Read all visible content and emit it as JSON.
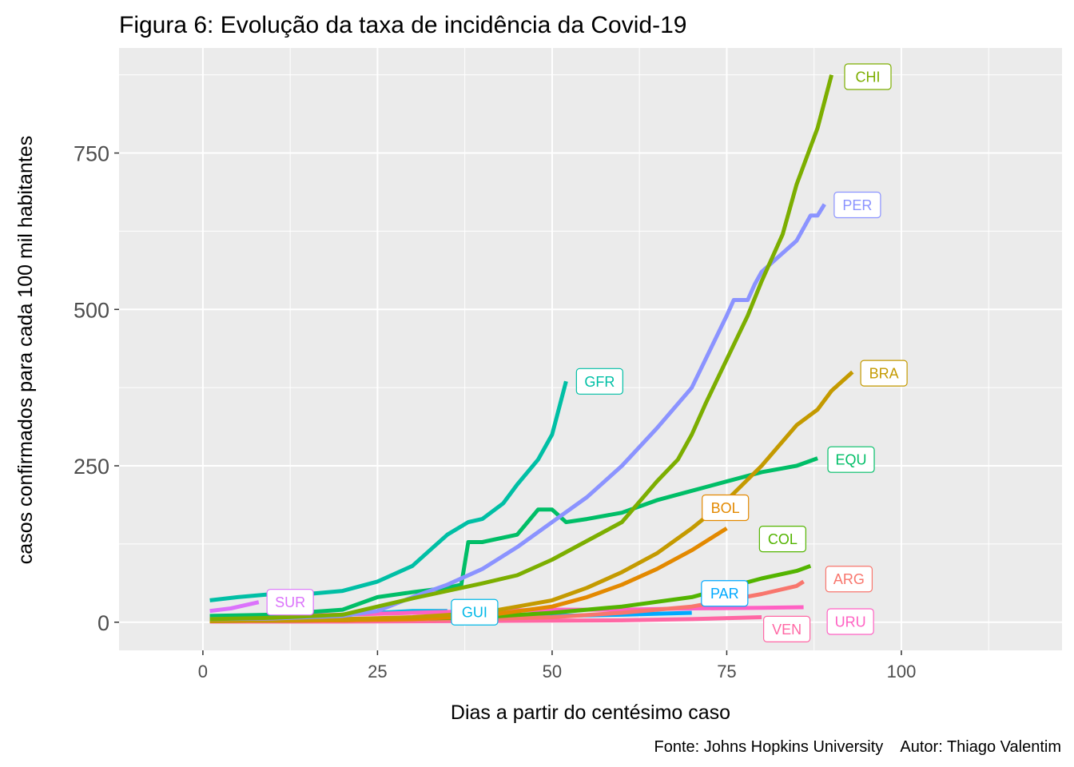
{
  "chart_data": {
    "type": "line",
    "title": "Figura 6: Evolução da taxa de incidência da Covid-19",
    "xlabel": "Dias a partir do centésimo caso",
    "ylabel": "casos confirmados para cada 100 mil habitantes",
    "caption": "Fonte: Johns Hopkins University    Autor: Thiago Valentim",
    "xlim": [
      -12,
      123
    ],
    "ylim": [
      -45,
      918
    ],
    "x_ticks": [
      0,
      25,
      50,
      75,
      100
    ],
    "x_tick_labels": [
      "0",
      "25",
      "50",
      "75",
      "100"
    ],
    "y_ticks": [
      0,
      250,
      500,
      750
    ],
    "y_tick_labels": [
      "0",
      "250",
      "500",
      "750"
    ],
    "grid": true,
    "legend": "none",
    "series": [
      {
        "name": "CHI",
        "color": "#7CAE00",
        "x": [
          1,
          10,
          20,
          25,
          30,
          35,
          40,
          45,
          50,
          55,
          60,
          65,
          68,
          70,
          72,
          75,
          78,
          80,
          83,
          85,
          88,
          90
        ],
        "y": [
          5,
          7,
          12,
          25,
          38,
          50,
          62,
          75,
          100,
          130,
          160,
          225,
          260,
          300,
          350,
          420,
          490,
          545,
          620,
          700,
          790,
          875
        ]
      },
      {
        "name": "PER",
        "color": "#8B93FF",
        "x": [
          1,
          10,
          20,
          25,
          30,
          35,
          40,
          45,
          50,
          55,
          60,
          65,
          70,
          75,
          76,
          77,
          78,
          79,
          80,
          82,
          85,
          87,
          88,
          89
        ],
        "y": [
          5,
          6,
          10,
          18,
          40,
          60,
          85,
          120,
          160,
          200,
          250,
          310,
          375,
          490,
          515,
          515,
          515,
          540,
          560,
          580,
          610,
          650,
          650,
          668
        ]
      },
      {
        "name": "BRA",
        "color": "#C49A00",
        "x": [
          1,
          10,
          20,
          30,
          40,
          50,
          55,
          60,
          65,
          70,
          75,
          80,
          85,
          88,
          90,
          93
        ],
        "y": [
          2,
          3,
          5,
          8,
          15,
          35,
          55,
          80,
          110,
          150,
          195,
          250,
          315,
          340,
          370,
          400
        ]
      },
      {
        "name": "EQU",
        "color": "#00BE67",
        "x": [
          1,
          10,
          20,
          25,
          30,
          35,
          37,
          38,
          40,
          45,
          48,
          50,
          52,
          55,
          60,
          65,
          70,
          75,
          80,
          85,
          88
        ],
        "y": [
          10,
          12,
          20,
          40,
          48,
          55,
          60,
          128,
          128,
          140,
          180,
          180,
          160,
          165,
          175,
          195,
          210,
          225,
          240,
          250,
          262
        ]
      },
      {
        "name": "GFR",
        "color": "#00BFA5",
        "x": [
          1,
          5,
          10,
          15,
          20,
          25,
          30,
          33,
          35,
          38,
          40,
          43,
          45,
          48,
          50,
          52
        ],
        "y": [
          35,
          40,
          45,
          45,
          50,
          65,
          90,
          120,
          140,
          160,
          165,
          190,
          220,
          260,
          300,
          385
        ]
      },
      {
        "name": "BOL",
        "color": "#E38900",
        "x": [
          1,
          20,
          30,
          40,
          50,
          55,
          60,
          65,
          70,
          75
        ],
        "y": [
          2,
          3,
          5,
          10,
          25,
          40,
          60,
          85,
          115,
          150
        ]
      },
      {
        "name": "COL",
        "color": "#53B400",
        "x": [
          1,
          20,
          40,
          50,
          60,
          70,
          75,
          80,
          85,
          87
        ],
        "y": [
          2,
          3,
          8,
          15,
          25,
          40,
          55,
          70,
          82,
          90
        ]
      },
      {
        "name": "ARG",
        "color": "#F8766D",
        "x": [
          1,
          20,
          40,
          50,
          60,
          70,
          75,
          80,
          85,
          86
        ],
        "y": [
          2,
          3,
          5,
          8,
          15,
          25,
          35,
          45,
          58,
          65
        ]
      },
      {
        "name": "PAR",
        "color": "#00A9FF",
        "x": [
          1,
          20,
          40,
          50,
          60,
          70
        ],
        "y": [
          3,
          5,
          8,
          10,
          12,
          15
        ]
      },
      {
        "name": "URU",
        "color": "#FF61C3",
        "x": [
          1,
          10,
          20,
          30,
          40,
          50,
          60,
          70,
          80,
          86
        ],
        "y": [
          8,
          10,
          12,
          15,
          18,
          20,
          20,
          22,
          23,
          24
        ]
      },
      {
        "name": "VEN",
        "color": "#FF67A4",
        "x": [
          1,
          20,
          40,
          60,
          70,
          80
        ],
        "y": [
          1,
          1,
          2,
          3,
          5,
          8
        ]
      },
      {
        "name": "GUI",
        "color": "#00B8E7",
        "x": [
          1,
          10,
          20,
          30,
          35
        ],
        "y": [
          5,
          8,
          12,
          18,
          18
        ]
      },
      {
        "name": "SUR",
        "color": "#DB72FB",
        "x": [
          1,
          4,
          8
        ],
        "y": [
          18,
          22,
          32
        ]
      }
    ],
    "labels": [
      {
        "name": "CHI",
        "x": 95.2,
        "y": 872,
        "color": "#7CAE00"
      },
      {
        "name": "PER",
        "x": 93.7,
        "y": 667,
        "color": "#8B93FF"
      },
      {
        "name": "BRA",
        "x": 97.5,
        "y": 398,
        "color": "#C49A00"
      },
      {
        "name": "EQU",
        "x": 92.8,
        "y": 260,
        "color": "#00BE67"
      },
      {
        "name": "GFR",
        "x": 56.8,
        "y": 385,
        "color": "#00BFA5"
      },
      {
        "name": "BOL",
        "x": 74.8,
        "y": 183,
        "color": "#E38900"
      },
      {
        "name": "COL",
        "x": 83.0,
        "y": 133,
        "color": "#53B400"
      },
      {
        "name": "ARG",
        "x": 92.5,
        "y": 69,
        "color": "#F8766D"
      },
      {
        "name": "PAR",
        "x": 74.7,
        "y": 46,
        "color": "#00A9FF"
      },
      {
        "name": "URU",
        "x": 92.7,
        "y": 1,
        "color": "#FF61C3"
      },
      {
        "name": "VEN",
        "x": 83.6,
        "y": -11,
        "color": "#FF67A4"
      },
      {
        "name": "GUI",
        "x": 38.9,
        "y": 16,
        "color": "#00B8E7"
      },
      {
        "name": "SUR",
        "x": 12.5,
        "y": 32,
        "color": "#DB72FB"
      }
    ]
  }
}
